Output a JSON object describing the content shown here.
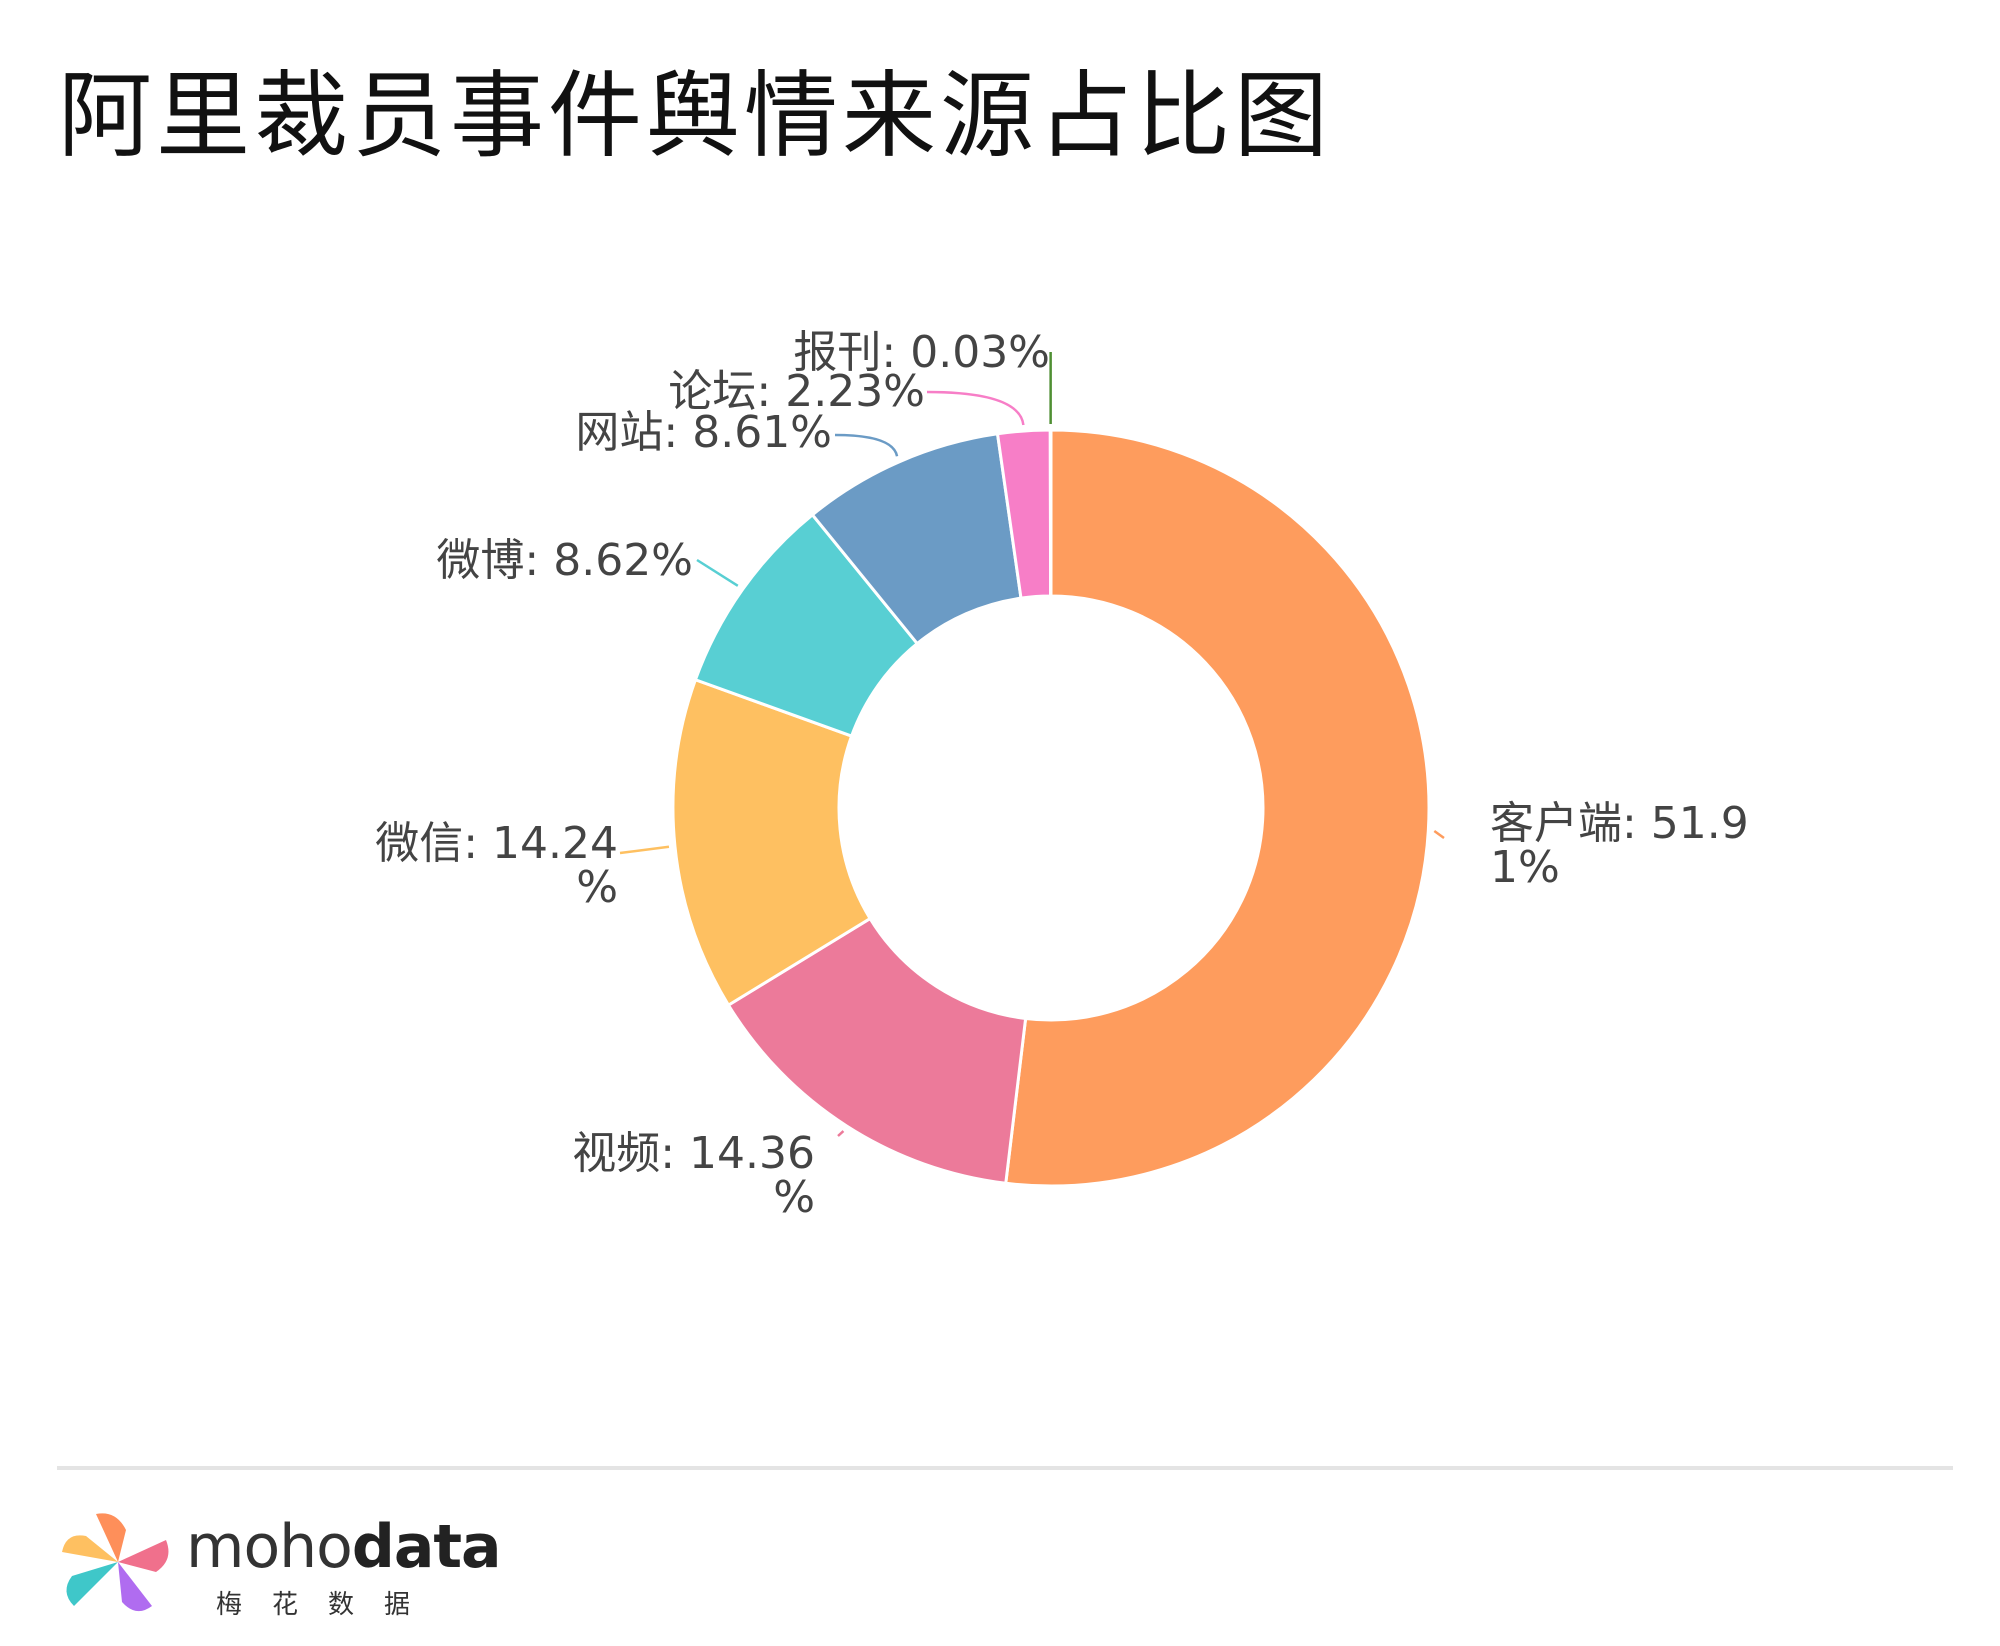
{
  "page": {
    "title": "阿里裁员事件舆情来源占比图"
  },
  "chart_data": {
    "type": "pie",
    "variant": "donut",
    "title": "阿里裁员事件舆情来源占比图",
    "slices": [
      {
        "name": "客户端",
        "value": 51.91,
        "label_lines": [
          "客户端: 51.9",
          "1%"
        ],
        "color": "#fe9c5d"
      },
      {
        "name": "视频",
        "value": 14.36,
        "label_lines": [
          "视频: 14.36",
          "%"
        ],
        "color": "#ec7a9a"
      },
      {
        "name": "微信",
        "value": 14.24,
        "label_lines": [
          "微信: 14.24",
          "%"
        ],
        "color": "#fec061"
      },
      {
        "name": "微博",
        "value": 8.62,
        "label_lines": [
          "微博: 8.62%"
        ],
        "color": "#58cfd3"
      },
      {
        "name": "网站",
        "value": 8.61,
        "label_lines": [
          "网站: 8.61%"
        ],
        "color": "#6b9bc5"
      },
      {
        "name": "论坛",
        "value": 2.23,
        "label_lines": [
          "论坛: 2.23%"
        ],
        "color": "#f77ec7"
      },
      {
        "name": "报刊",
        "value": 0.03,
        "label_lines": [
          "报刊: 0.03%"
        ],
        "color": "#4f8f33"
      }
    ]
  },
  "footer": {
    "brand_light": "moho",
    "brand_bold": "data",
    "brand_sub": "梅花数据"
  }
}
